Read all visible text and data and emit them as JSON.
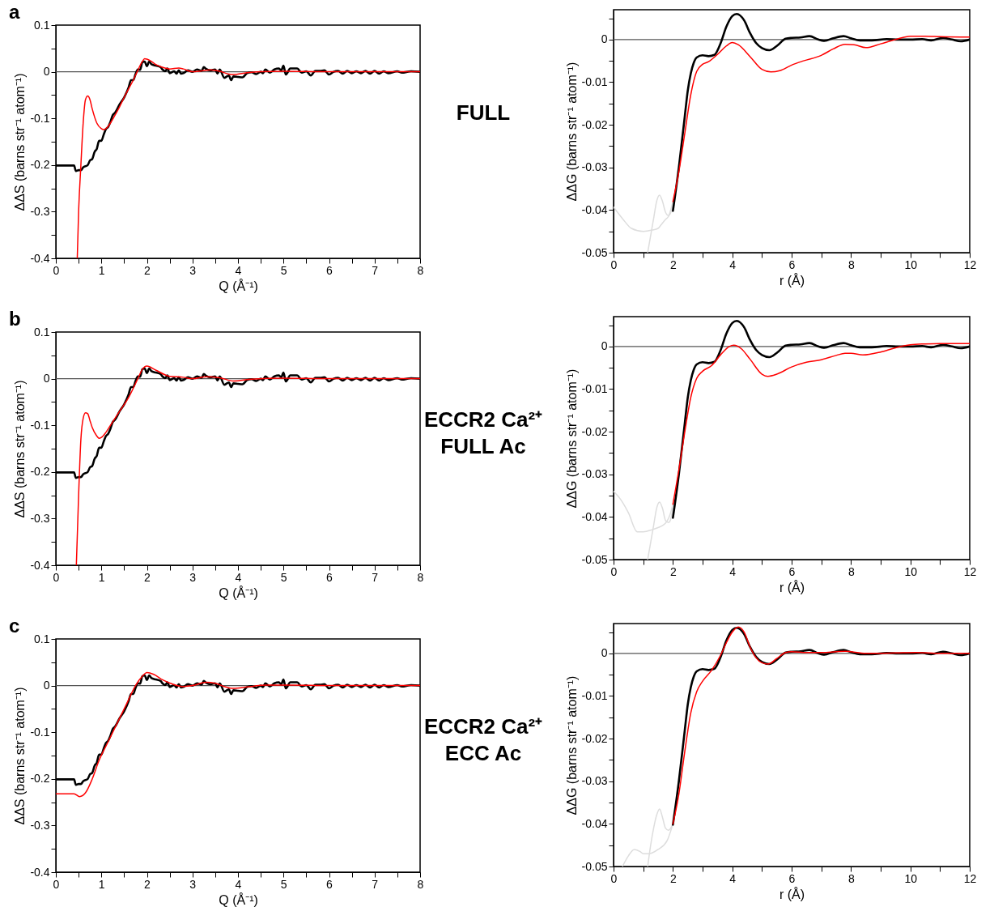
{
  "chart_data": [
    {
      "type": "line",
      "title": "a",
      "xlabel": "Q (Å⁻¹)",
      "ylabel": "ΔΔS (barns str⁻¹ atom⁻¹)",
      "annotations": [
        "FULL"
      ],
      "xlim": [
        0,
        8
      ],
      "ylim": [
        -0.4,
        0.1
      ],
      "xticks": [
        0,
        {
          "value": 0.5,
          "label": null
        },
        1,
        {
          "value": 1.5,
          "label": null
        },
        2,
        {
          "value": 2.5,
          "label": null
        },
        3,
        {
          "value": 3.5,
          "label": null
        },
        4,
        {
          "value": 4.5,
          "label": null
        },
        5,
        {
          "value": 5.5,
          "label": null
        },
        6,
        {
          "value": 6.5,
          "label": null
        },
        7,
        {
          "value": 7.5,
          "label": null
        },
        8
      ],
      "yticks": [
        -0.4,
        {
          "value": -0.35,
          "label": null
        },
        -0.3,
        {
          "value": -0.25,
          "label": null
        },
        -0.2,
        {
          "value": -0.15,
          "label": null
        },
        -0.1,
        {
          "value": -0.05,
          "label": null
        },
        0,
        {
          "value": 0.05,
          "label": null
        },
        0.1
      ],
      "ref_lines": [
        {
          "axis": "y",
          "value": 0,
          "color": "#555555"
        }
      ],
      "series": [
        {
          "color": "#000000",
          "x": [
            0,
            0.4,
            0.44,
            0.5,
            0.55,
            0.6,
            0.7,
            0.75,
            0.8,
            0.85,
            0.9,
            0.95,
            1.0,
            1.05,
            1.1,
            1.15,
            1.2,
            1.25,
            1.3,
            1.4,
            1.5,
            1.6,
            1.65,
            1.7,
            1.75,
            1.8,
            1.85,
            1.9,
            1.95,
            2.0,
            2.05,
            2.1,
            2.2,
            2.3,
            2.35,
            2.4,
            2.45,
            2.5,
            2.6,
            2.65,
            2.7,
            2.75,
            2.8,
            2.9,
            3.0,
            3.1,
            3.2,
            3.25,
            3.3,
            3.4,
            3.5,
            3.55,
            3.6,
            3.7,
            3.8,
            3.85,
            3.9,
            4.0,
            4.1,
            4.2,
            4.3,
            4.4,
            4.5,
            4.55,
            4.6,
            4.7,
            4.8,
            4.9,
            4.95,
            5.0,
            5.05,
            5.15,
            5.3,
            5.4,
            5.5,
            5.6,
            5.7,
            5.8,
            5.9,
            6.0,
            6.1,
            6.2,
            6.3,
            6.4,
            6.5,
            6.6,
            6.7,
            6.8,
            6.9,
            7.0,
            7.1,
            7.2,
            7.3,
            7.5,
            7.6,
            7.8,
            8.0
          ],
          "values": [
            -0.201,
            -0.201,
            -0.213,
            -0.211,
            -0.211,
            -0.205,
            -0.2,
            -0.19,
            -0.187,
            -0.172,
            -0.165,
            -0.148,
            -0.148,
            -0.135,
            -0.123,
            -0.118,
            -0.107,
            -0.093,
            -0.088,
            -0.07,
            -0.055,
            -0.033,
            -0.018,
            -0.018,
            -0.005,
            0.005,
            0.004,
            0.02,
            0.022,
            0.012,
            0.022,
            0.016,
            0.013,
            0.01,
            0.004,
            0.001,
            0.007,
            -0.003,
            0.001,
            -0.004,
            0.003,
            -0.004,
            -0.003,
            0.003,
            0.0,
            0.005,
            0.002,
            0.01,
            0.006,
            0.003,
            0.005,
            -0.004,
            0.005,
            -0.013,
            -0.008,
            -0.018,
            -0.01,
            -0.011,
            -0.012,
            -0.003,
            -0.001,
            -0.005,
            0.0,
            -0.003,
            0.005,
            -0.002,
            0.005,
            0.007,
            0.003,
            0.013,
            -0.006,
            0.007,
            0.007,
            -0.002,
            0.001,
            -0.008,
            0.002,
            0.002,
            0.003,
            -0.006,
            0.0,
            0.002,
            -0.004,
            0.002,
            -0.003,
            0.001,
            -0.003,
            0.002,
            -0.004,
            0.002,
            -0.004,
            0.001,
            -0.003,
            0.001,
            -0.002,
            0.001,
            0.0
          ]
        },
        {
          "color": "#ff0000",
          "x": [
            0.47,
            0.5,
            0.55,
            0.6,
            0.65,
            0.7,
            0.75,
            0.8,
            0.9,
            1.0,
            1.05,
            1.1,
            1.2,
            1.3,
            1.4,
            1.5,
            1.6,
            1.7,
            1.8,
            1.9,
            1.95,
            2.0,
            2.1,
            2.2,
            2.4,
            2.5,
            2.7,
            2.8,
            3.0,
            3.2,
            3.4,
            3.6,
            3.8,
            3.9,
            4.2,
            4.5,
            5.0,
            6.0,
            8.0
          ],
          "values": [
            -0.4,
            -0.3,
            -0.2,
            -0.11,
            -0.06,
            -0.052,
            -0.06,
            -0.08,
            -0.11,
            -0.122,
            -0.124,
            -0.122,
            -0.11,
            -0.093,
            -0.075,
            -0.055,
            -0.036,
            -0.018,
            0.003,
            0.022,
            0.028,
            0.027,
            0.022,
            0.015,
            0.008,
            0.006,
            0.008,
            0.006,
            0.0,
            0.002,
            0.004,
            0.001,
            -0.005,
            -0.006,
            -0.002,
            0.0,
            0.001,
            0.0,
            0.0
          ]
        }
      ]
    },
    {
      "type": "line",
      "xlabel": "r (Å)",
      "ylabel": "ΔΔG (barns str⁻¹ atom⁻¹)",
      "xlim": [
        0,
        12
      ],
      "ylim": [
        -0.05,
        0.007
      ],
      "xticks": [
        0,
        {
          "value": 1,
          "label": null
        },
        2,
        {
          "value": 3,
          "label": null
        },
        4,
        {
          "value": 5,
          "label": null
        },
        6,
        {
          "value": 7,
          "label": null
        },
        8,
        {
          "value": 9,
          "label": null
        },
        10,
        {
          "value": 11,
          "label": null
        },
        12
      ],
      "yticks": [
        -0.05,
        {
          "value": -0.045,
          "label": null
        },
        -0.04,
        {
          "value": -0.035,
          "label": null
        },
        -0.03,
        {
          "value": -0.025,
          "label": null
        },
        -0.02,
        {
          "value": -0.015,
          "label": null
        },
        -0.01,
        {
          "value": -0.005,
          "label": null
        },
        0,
        {
          "value": 0.005,
          "label": null
        }
      ],
      "ref_lines": [
        {
          "axis": "y",
          "value": 0,
          "color": "#555555"
        }
      ],
      "series": [
        {
          "color": "#dddddd",
          "x": [
            0,
            0.3,
            0.6,
            1.0,
            1.3,
            1.5,
            1.6,
            1.75,
            1.85,
            2.0
          ],
          "values": [
            -0.0393,
            -0.042,
            -0.0443,
            -0.045,
            -0.0447,
            -0.0443,
            -0.0435,
            -0.0422,
            -0.0415,
            -0.038
          ]
        },
        {
          "color": "#dddddd",
          "x": [
            1.15,
            1.25,
            1.35,
            1.45,
            1.55,
            1.65,
            1.75,
            1.85,
            1.9,
            2.0
          ],
          "values": [
            -0.05,
            -0.046,
            -0.042,
            -0.038,
            -0.0365,
            -0.038,
            -0.0405,
            -0.0413,
            -0.041,
            -0.039
          ]
        },
        {
          "color": "#000000",
          "x": [
            2.0,
            2.2,
            2.4,
            2.5,
            2.6,
            2.7,
            2.8,
            3.0,
            3.2,
            3.4,
            3.6,
            3.8,
            4.0,
            4.15,
            4.4,
            4.6,
            4.8,
            5.0,
            5.25,
            5.5,
            5.8,
            6.0,
            6.3,
            6.6,
            6.9,
            7.1,
            7.4,
            7.75,
            8.0,
            8.3,
            8.7,
            9.2,
            9.6,
            10.0,
            10.4,
            10.7,
            11.1,
            11.4,
            11.7,
            12.0
          ],
          "values": [
            -0.0402,
            -0.03,
            -0.018,
            -0.012,
            -0.008,
            -0.0055,
            -0.0042,
            -0.0037,
            -0.0039,
            -0.0036,
            -0.001,
            0.003,
            0.0055,
            0.006,
            0.0045,
            0.0015,
            -0.0008,
            -0.002,
            -0.0025,
            -0.0015,
            0.0002,
            0.0004,
            0.0005,
            0.0008,
            0.0,
            -0.0003,
            0.0003,
            0.0008,
            0.0003,
            -0.0002,
            -0.0002,
            0.0001,
            0.0,
            0.0,
            0.0001,
            -0.0002,
            0.0004,
            0.0,
            -0.0004,
            0.0
          ]
        },
        {
          "color": "#ff0000",
          "x": [
            2.0,
            2.2,
            2.4,
            2.6,
            2.8,
            3.0,
            3.2,
            3.5,
            3.8,
            4.0,
            4.2,
            4.6,
            5.0,
            5.3,
            5.6,
            6.0,
            6.4,
            7.0,
            7.4,
            7.8,
            8.1,
            8.5,
            9.0,
            9.5,
            10.0,
            10.5,
            11.0,
            12.0
          ],
          "values": [
            -0.038,
            -0.031,
            -0.022,
            -0.013,
            -0.0075,
            -0.0058,
            -0.0052,
            -0.0035,
            -0.0015,
            -0.0007,
            -0.0012,
            -0.004,
            -0.007,
            -0.0076,
            -0.0073,
            -0.006,
            -0.005,
            -0.0037,
            -0.0022,
            -0.0011,
            -0.0012,
            -0.0019,
            -0.001,
            0.0,
            0.0008,
            0.0008,
            0.0007,
            0.0006
          ]
        }
      ]
    },
    {
      "type": "line",
      "title": "b",
      "xlabel": "Q (Å⁻¹)",
      "ylabel": "ΔΔS (barns str⁻¹ atom⁻¹)",
      "annotations": [
        "ECCR2 Ca²⁺\nFULL Ac"
      ],
      "xlim": [
        0,
        8
      ],
      "ylim": [
        -0.4,
        0.1
      ],
      "xticks": [
        0,
        {
          "value": 0.5,
          "label": null
        },
        1,
        {
          "value": 1.5,
          "label": null
        },
        2,
        {
          "value": 2.5,
          "label": null
        },
        3,
        {
          "value": 3.5,
          "label": null
        },
        4,
        {
          "value": 4.5,
          "label": null
        },
        5,
        {
          "value": 5.5,
          "label": null
        },
        6,
        {
          "value": 6.5,
          "label": null
        },
        7,
        {
          "value": 7.5,
          "label": null
        },
        8
      ],
      "yticks": [
        -0.4,
        {
          "value": -0.35,
          "label": null
        },
        -0.3,
        {
          "value": -0.25,
          "label": null
        },
        -0.2,
        {
          "value": -0.15,
          "label": null
        },
        -0.1,
        {
          "value": -0.05,
          "label": null
        },
        0,
        {
          "value": 0.05,
          "label": null
        },
        0.1
      ],
      "ref_lines": [
        {
          "axis": "y",
          "value": 0,
          "color": "#555555"
        }
      ],
      "series": [
        {
          "color": "#000000",
          "x": [
            0,
            0.4,
            0.44,
            0.5,
            0.55,
            0.6,
            0.7,
            0.75,
            0.8,
            0.85,
            0.9,
            0.95,
            1.0,
            1.05,
            1.1,
            1.15,
            1.2,
            1.25,
            1.3,
            1.4,
            1.5,
            1.6,
            1.65,
            1.7,
            1.75,
            1.8,
            1.85,
            1.9,
            1.95,
            2.0,
            2.05,
            2.1,
            2.2,
            2.3,
            2.35,
            2.4,
            2.45,
            2.5,
            2.6,
            2.65,
            2.7,
            2.75,
            2.8,
            2.9,
            3.0,
            3.1,
            3.2,
            3.25,
            3.3,
            3.4,
            3.5,
            3.55,
            3.6,
            3.7,
            3.8,
            3.85,
            3.9,
            4.0,
            4.1,
            4.2,
            4.3,
            4.4,
            4.5,
            4.55,
            4.6,
            4.7,
            4.8,
            4.9,
            4.95,
            5.0,
            5.05,
            5.15,
            5.3,
            5.4,
            5.5,
            5.6,
            5.7,
            5.8,
            5.9,
            6.0,
            6.1,
            6.2,
            6.3,
            6.4,
            6.5,
            6.6,
            6.7,
            6.8,
            6.9,
            7.0,
            7.1,
            7.2,
            7.3,
            7.5,
            7.6,
            7.8,
            8.0
          ],
          "values": [
            -0.201,
            -0.201,
            -0.213,
            -0.211,
            -0.211,
            -0.205,
            -0.2,
            -0.19,
            -0.187,
            -0.172,
            -0.165,
            -0.148,
            -0.148,
            -0.135,
            -0.123,
            -0.118,
            -0.107,
            -0.093,
            -0.088,
            -0.07,
            -0.055,
            -0.033,
            -0.018,
            -0.018,
            -0.005,
            0.005,
            0.004,
            0.02,
            0.022,
            0.012,
            0.022,
            0.016,
            0.013,
            0.01,
            0.004,
            0.001,
            0.007,
            -0.003,
            0.001,
            -0.004,
            0.003,
            -0.004,
            -0.003,
            0.003,
            0.0,
            0.005,
            0.002,
            0.01,
            0.006,
            0.003,
            0.005,
            -0.004,
            0.005,
            -0.013,
            -0.008,
            -0.018,
            -0.01,
            -0.011,
            -0.012,
            -0.003,
            -0.001,
            -0.005,
            0.0,
            -0.003,
            0.005,
            -0.002,
            0.005,
            0.007,
            0.003,
            0.013,
            -0.006,
            0.007,
            0.007,
            -0.002,
            0.001,
            -0.008,
            0.002,
            0.002,
            0.003,
            -0.006,
            0.0,
            0.002,
            -0.004,
            0.002,
            -0.003,
            0.001,
            -0.003,
            0.002,
            -0.004,
            0.002,
            -0.004,
            0.001,
            -0.003,
            0.001,
            -0.002,
            0.001,
            0.0
          ]
        },
        {
          "color": "#ff0000",
          "x": [
            0.45,
            0.5,
            0.55,
            0.6,
            0.65,
            0.7,
            0.75,
            0.8,
            0.9,
            0.95,
            1.0,
            1.1,
            1.2,
            1.4,
            1.6,
            1.8,
            1.9,
            2.0,
            2.2,
            2.5,
            2.8,
            3.0,
            3.3,
            3.6,
            3.9,
            4.3,
            5.0,
            6.0,
            8.0
          ],
          "values": [
            -0.4,
            -0.25,
            -0.13,
            -0.085,
            -0.073,
            -0.075,
            -0.09,
            -0.105,
            -0.123,
            -0.128,
            -0.126,
            -0.115,
            -0.1,
            -0.07,
            -0.04,
            0.0,
            0.02,
            0.027,
            0.018,
            0.005,
            0.003,
            0.0,
            0.004,
            0.002,
            -0.005,
            -0.001,
            0.001,
            0.0,
            0.0
          ]
        }
      ]
    },
    {
      "type": "line",
      "xlabel": "r (Å)",
      "ylabel": "ΔΔG (barns str⁻¹ atom⁻¹)",
      "xlim": [
        0,
        12
      ],
      "ylim": [
        -0.05,
        0.007
      ],
      "xticks": [
        0,
        {
          "value": 1,
          "label": null
        },
        2,
        {
          "value": 3,
          "label": null
        },
        4,
        {
          "value": 5,
          "label": null
        },
        6,
        {
          "value": 7,
          "label": null
        },
        8,
        {
          "value": 9,
          "label": null
        },
        10,
        {
          "value": 11,
          "label": null
        },
        12
      ],
      "yticks": [
        -0.05,
        {
          "value": -0.045,
          "label": null
        },
        -0.04,
        {
          "value": -0.035,
          "label": null
        },
        -0.03,
        {
          "value": -0.025,
          "label": null
        },
        -0.02,
        {
          "value": -0.015,
          "label": null
        },
        -0.01,
        {
          "value": -0.005,
          "label": null
        },
        0,
        {
          "value": 0.005,
          "label": null
        }
      ],
      "ref_lines": [
        {
          "axis": "y",
          "value": 0,
          "color": "#555555"
        }
      ],
      "series": [
        {
          "color": "#dddddd",
          "x": [
            0,
            0.25,
            0.5,
            0.8,
            1.0,
            1.3,
            1.5,
            1.65,
            1.8,
            1.9,
            2.0
          ],
          "values": [
            -0.034,
            -0.036,
            -0.039,
            -0.0435,
            -0.0435,
            -0.043,
            -0.0425,
            -0.042,
            -0.041,
            -0.0395,
            -0.037
          ]
        },
        {
          "color": "#dddddd",
          "x": [
            1.15,
            1.25,
            1.35,
            1.45,
            1.55,
            1.65,
            1.75,
            1.85,
            1.9,
            2.0
          ],
          "values": [
            -0.05,
            -0.046,
            -0.042,
            -0.038,
            -0.0365,
            -0.038,
            -0.0408,
            -0.0413,
            -0.041,
            -0.038
          ]
        },
        {
          "color": "#000000",
          "x": [
            2.0,
            2.2,
            2.4,
            2.5,
            2.6,
            2.7,
            2.8,
            3.0,
            3.2,
            3.4,
            3.6,
            3.8,
            4.0,
            4.15,
            4.4,
            4.6,
            4.8,
            5.0,
            5.25,
            5.5,
            5.8,
            6.0,
            6.3,
            6.6,
            6.9,
            7.1,
            7.4,
            7.75,
            8.0,
            8.3,
            8.7,
            9.2,
            9.6,
            10.0,
            10.4,
            10.7,
            11.1,
            11.4,
            11.7,
            12.0
          ],
          "values": [
            -0.0402,
            -0.03,
            -0.018,
            -0.012,
            -0.008,
            -0.0055,
            -0.0042,
            -0.0037,
            -0.0039,
            -0.0036,
            -0.001,
            0.003,
            0.0055,
            0.006,
            0.0045,
            0.0015,
            -0.0008,
            -0.002,
            -0.0025,
            -0.0015,
            0.0002,
            0.0004,
            0.0005,
            0.0008,
            0.0,
            -0.0003,
            0.0003,
            0.0008,
            0.0003,
            -0.0002,
            -0.0002,
            0.0001,
            0.0,
            0.0,
            0.0001,
            -0.0002,
            0.0004,
            0.0,
            -0.0004,
            0.0
          ]
        },
        {
          "color": "#ff0000",
          "x": [
            2.0,
            2.2,
            2.4,
            2.6,
            2.8,
            3.0,
            3.3,
            3.6,
            3.9,
            4.05,
            4.3,
            4.6,
            5.0,
            5.2,
            5.5,
            6.0,
            6.5,
            7.0,
            7.5,
            7.8,
            8.0,
            8.4,
            9.0,
            9.5,
            10.0,
            10.5,
            11.0,
            12.0
          ],
          "values": [
            -0.037,
            -0.029,
            -0.02,
            -0.012,
            -0.0075,
            -0.0058,
            -0.0045,
            -0.002,
            0.0,
            0.0003,
            -0.0005,
            -0.003,
            -0.0065,
            -0.007,
            -0.0065,
            -0.0048,
            -0.0037,
            -0.0031,
            -0.0021,
            -0.0016,
            -0.0016,
            -0.002,
            -0.0013,
            -0.0003,
            0.0004,
            0.0006,
            0.0007,
            0.0007
          ]
        }
      ]
    },
    {
      "type": "line",
      "title": "c",
      "xlabel": "Q (Å⁻¹)",
      "ylabel": "ΔΔS (barns str⁻¹ atom⁻¹)",
      "annotations": [
        "ECCR2 Ca²⁺\nECC Ac"
      ],
      "xlim": [
        0,
        8
      ],
      "ylim": [
        -0.4,
        0.1
      ],
      "xticks": [
        0,
        {
          "value": 0.5,
          "label": null
        },
        1,
        {
          "value": 1.5,
          "label": null
        },
        2,
        {
          "value": 2.5,
          "label": null
        },
        3,
        {
          "value": 3.5,
          "label": null
        },
        4,
        {
          "value": 4.5,
          "label": null
        },
        5,
        {
          "value": 5.5,
          "label": null
        },
        6,
        {
          "value": 6.5,
          "label": null
        },
        7,
        {
          "value": 7.5,
          "label": null
        },
        8
      ],
      "yticks": [
        -0.4,
        {
          "value": -0.35,
          "label": null
        },
        -0.3,
        {
          "value": -0.25,
          "label": null
        },
        -0.2,
        {
          "value": -0.15,
          "label": null
        },
        -0.1,
        {
          "value": -0.05,
          "label": null
        },
        0,
        {
          "value": 0.05,
          "label": null
        },
        0.1
      ],
      "ref_lines": [
        {
          "axis": "y",
          "value": 0,
          "color": "#555555"
        }
      ],
      "series": [
        {
          "color": "#000000",
          "x": [
            0,
            0.4,
            0.44,
            0.5,
            0.55,
            0.6,
            0.7,
            0.75,
            0.8,
            0.85,
            0.9,
            0.95,
            1.0,
            1.05,
            1.1,
            1.15,
            1.2,
            1.25,
            1.3,
            1.4,
            1.5,
            1.6,
            1.65,
            1.7,
            1.75,
            1.8,
            1.85,
            1.9,
            1.95,
            2.0,
            2.05,
            2.1,
            2.2,
            2.3,
            2.35,
            2.4,
            2.45,
            2.5,
            2.6,
            2.65,
            2.7,
            2.75,
            2.8,
            2.9,
            3.0,
            3.1,
            3.2,
            3.25,
            3.3,
            3.4,
            3.5,
            3.55,
            3.6,
            3.7,
            3.8,
            3.85,
            3.9,
            4.0,
            4.1,
            4.2,
            4.3,
            4.4,
            4.5,
            4.55,
            4.6,
            4.7,
            4.8,
            4.9,
            4.95,
            5.0,
            5.05,
            5.15,
            5.3,
            5.4,
            5.5,
            5.6,
            5.7,
            5.8,
            5.9,
            6.0,
            6.1,
            6.2,
            6.3,
            6.4,
            6.5,
            6.6,
            6.7,
            6.8,
            6.9,
            7.0,
            7.1,
            7.2,
            7.3,
            7.5,
            7.6,
            7.8,
            8.0
          ],
          "values": [
            -0.201,
            -0.201,
            -0.213,
            -0.211,
            -0.211,
            -0.205,
            -0.2,
            -0.19,
            -0.187,
            -0.172,
            -0.165,
            -0.148,
            -0.148,
            -0.135,
            -0.123,
            -0.118,
            -0.107,
            -0.093,
            -0.088,
            -0.07,
            -0.055,
            -0.033,
            -0.018,
            -0.018,
            -0.005,
            0.005,
            0.004,
            0.02,
            0.022,
            0.012,
            0.022,
            0.016,
            0.013,
            0.01,
            0.004,
            0.001,
            0.007,
            -0.003,
            0.001,
            -0.004,
            0.003,
            -0.004,
            -0.003,
            0.003,
            0.0,
            0.005,
            0.002,
            0.01,
            0.006,
            0.003,
            0.005,
            -0.004,
            0.005,
            -0.013,
            -0.008,
            -0.018,
            -0.01,
            -0.011,
            -0.012,
            -0.003,
            -0.001,
            -0.005,
            0.0,
            -0.003,
            0.005,
            -0.002,
            0.005,
            0.007,
            0.003,
            0.013,
            -0.006,
            0.007,
            0.007,
            -0.002,
            0.001,
            -0.008,
            0.002,
            0.002,
            0.003,
            -0.006,
            0.0,
            0.002,
            -0.004,
            0.002,
            -0.003,
            0.001,
            -0.003,
            0.002,
            -0.004,
            0.002,
            -0.004,
            0.001,
            -0.003,
            0.001,
            -0.002,
            0.001,
            0.0
          ]
        },
        {
          "color": "#ff0000",
          "x": [
            0,
            0.4,
            0.52,
            0.65,
            0.8,
            0.95,
            1.15,
            1.35,
            1.55,
            1.75,
            1.9,
            2.0,
            2.15,
            2.35,
            2.6,
            2.8,
            3.0,
            3.3,
            3.5,
            3.7,
            3.9,
            4.2,
            4.6,
            5.2,
            6.0,
            8.0
          ],
          "values": [
            -0.232,
            -0.232,
            -0.238,
            -0.23,
            -0.2,
            -0.16,
            -0.12,
            -0.08,
            -0.04,
            0.0,
            0.02,
            0.028,
            0.024,
            0.012,
            0.002,
            -0.002,
            0.0,
            0.007,
            0.005,
            -0.002,
            -0.006,
            -0.003,
            0.001,
            0.001,
            0.0,
            0.0
          ]
        }
      ]
    },
    {
      "type": "line",
      "xlabel": "r (Å)",
      "ylabel": "ΔΔG (barns str⁻¹ atom⁻¹)",
      "xlim": [
        0,
        12
      ],
      "ylim": [
        -0.05,
        0.007
      ],
      "xticks": [
        0,
        {
          "value": 1,
          "label": null
        },
        2,
        {
          "value": 3,
          "label": null
        },
        4,
        {
          "value": 5,
          "label": null
        },
        6,
        {
          "value": 7,
          "label": null
        },
        8,
        {
          "value": 9,
          "label": null
        },
        10,
        {
          "value": 11,
          "label": null
        },
        12
      ],
      "yticks": [
        -0.05,
        {
          "value": -0.045,
          "label": null
        },
        -0.04,
        {
          "value": -0.035,
          "label": null
        },
        -0.03,
        {
          "value": -0.025,
          "label": null
        },
        -0.02,
        {
          "value": -0.015,
          "label": null
        },
        -0.01,
        {
          "value": -0.005,
          "label": null
        },
        0,
        {
          "value": 0.005,
          "label": null
        }
      ],
      "ref_lines": [
        {
          "axis": "y",
          "value": 0,
          "color": "#555555"
        }
      ],
      "series": [
        {
          "color": "#dddddd",
          "x": [
            0.3,
            0.5,
            0.7,
            0.9,
            1.0,
            1.2,
            1.5,
            1.8,
            2.0
          ],
          "values": [
            -0.05,
            -0.0475,
            -0.046,
            -0.0465,
            -0.047,
            -0.047,
            -0.046,
            -0.044,
            -0.04
          ]
        },
        {
          "color": "#dddddd",
          "x": [
            1.15,
            1.25,
            1.35,
            1.45,
            1.55,
            1.65,
            1.75,
            1.85,
            2.0
          ],
          "values": [
            -0.05,
            -0.045,
            -0.041,
            -0.038,
            -0.0365,
            -0.0385,
            -0.041,
            -0.0415,
            -0.04
          ]
        },
        {
          "color": "#000000",
          "x": [
            2.0,
            2.2,
            2.4,
            2.5,
            2.6,
            2.7,
            2.8,
            3.0,
            3.2,
            3.4,
            3.6,
            3.8,
            4.0,
            4.15,
            4.4,
            4.6,
            4.8,
            5.0,
            5.25,
            5.5,
            5.8,
            6.0,
            6.3,
            6.6,
            6.9,
            7.1,
            7.4,
            7.75,
            8.0,
            8.3,
            8.7,
            9.2,
            9.6,
            10.0,
            10.4,
            10.7,
            11.1,
            11.4,
            11.7,
            12.0
          ],
          "values": [
            -0.0402,
            -0.03,
            -0.018,
            -0.012,
            -0.008,
            -0.0055,
            -0.0042,
            -0.0037,
            -0.0039,
            -0.0036,
            -0.001,
            0.003,
            0.0055,
            0.006,
            0.0045,
            0.0015,
            -0.0008,
            -0.002,
            -0.0025,
            -0.0015,
            0.0002,
            0.0004,
            0.0005,
            0.0008,
            0.0,
            -0.0003,
            0.0003,
            0.0008,
            0.0003,
            -0.0002,
            -0.0002,
            0.0001,
            0.0,
            0.0,
            0.0001,
            -0.0002,
            0.0004,
            0.0,
            -0.0004,
            0.0
          ]
        },
        {
          "color": "#ff0000",
          "x": [
            2.0,
            2.2,
            2.4,
            2.6,
            2.8,
            3.0,
            3.3,
            3.6,
            3.8,
            4.0,
            4.2,
            4.4,
            4.6,
            4.8,
            5.0,
            5.2,
            5.5,
            5.8,
            6.0,
            6.5,
            7.0,
            7.5,
            7.8,
            8.5,
            9.5,
            10.2,
            11.0,
            12.0
          ],
          "values": [
            -0.04,
            -0.033,
            -0.023,
            -0.014,
            -0.009,
            -0.0065,
            -0.004,
            -0.0005,
            0.0025,
            0.005,
            0.0062,
            0.005,
            0.0015,
            -0.001,
            -0.0022,
            -0.0025,
            -0.0012,
            0.0002,
            0.0004,
            0.0002,
            0.0002,
            0.0004,
            0.0005,
            0.0,
            0.0001,
            0.0002,
            0.0,
            0.0
          ]
        }
      ]
    }
  ]
}
